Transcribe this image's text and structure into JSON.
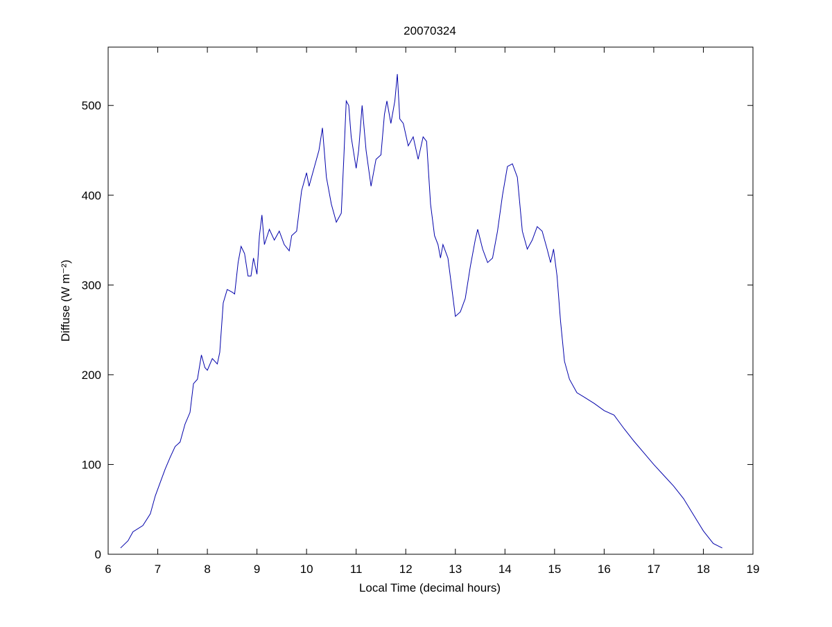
{
  "chart_data": {
    "type": "line",
    "title": "20070324",
    "xlabel": "Local Time (decimal hours)",
    "ylabel": "Diffuse (W m⁻²)",
    "x": [
      6.25,
      6.4,
      6.5,
      6.7,
      6.85,
      6.95,
      7.05,
      7.15,
      7.25,
      7.35,
      7.45,
      7.55,
      7.65,
      7.72,
      7.8,
      7.88,
      7.95,
      8.0,
      8.1,
      8.2,
      8.25,
      8.32,
      8.4,
      8.5,
      8.55,
      8.62,
      8.68,
      8.75,
      8.82,
      8.88,
      8.93,
      9.0,
      9.05,
      9.1,
      9.15,
      9.25,
      9.35,
      9.45,
      9.55,
      9.65,
      9.7,
      9.8,
      9.9,
      10.0,
      10.05,
      10.15,
      10.25,
      10.32,
      10.4,
      10.5,
      10.6,
      10.7,
      10.75,
      10.8,
      10.85,
      10.9,
      11.0,
      11.05,
      11.12,
      11.2,
      11.3,
      11.4,
      11.5,
      11.57,
      11.62,
      11.7,
      11.78,
      11.83,
      11.88,
      11.95,
      12.05,
      12.15,
      12.25,
      12.35,
      12.42,
      12.5,
      12.58,
      12.65,
      12.7,
      12.75,
      12.85,
      12.92,
      13.0,
      13.1,
      13.2,
      13.3,
      13.4,
      13.45,
      13.55,
      13.65,
      13.75,
      13.85,
      13.95,
      14.05,
      14.15,
      14.25,
      14.35,
      14.45,
      14.55,
      14.65,
      14.75,
      14.85,
      14.92,
      14.98,
      15.05,
      15.12,
      15.2,
      15.3,
      15.45,
      15.6,
      15.8,
      16.0,
      16.2,
      16.4,
      16.6,
      16.8,
      17.0,
      17.2,
      17.4,
      17.6,
      17.8,
      18.0,
      18.2,
      18.38
    ],
    "series": [
      {
        "name": "Diffuse",
        "color": "#0000aa",
        "values": [
          7,
          15,
          25,
          32,
          45,
          65,
          80,
          95,
          108,
          120,
          125,
          145,
          158,
          190,
          195,
          222,
          208,
          205,
          218,
          212,
          225,
          280,
          295,
          292,
          290,
          325,
          343,
          335,
          310,
          310,
          330,
          312,
          355,
          378,
          345,
          362,
          350,
          360,
          345,
          338,
          355,
          360,
          405,
          425,
          410,
          430,
          450,
          475,
          420,
          390,
          370,
          380,
          440,
          505,
          500,
          465,
          430,
          450,
          500,
          450,
          410,
          440,
          445,
          490,
          505,
          480,
          505,
          535,
          485,
          480,
          455,
          465,
          440,
          465,
          460,
          390,
          355,
          345,
          330,
          345,
          330,
          300,
          265,
          270,
          285,
          320,
          350,
          362,
          340,
          325,
          330,
          360,
          400,
          432,
          435,
          420,
          360,
          340,
          350,
          365,
          360,
          340,
          325,
          340,
          310,
          260,
          215,
          195,
          180,
          175,
          168,
          160,
          155,
          140,
          126,
          113,
          100,
          88,
          76,
          62,
          44,
          26,
          12,
          7
        ]
      }
    ],
    "xlim": [
      6,
      19
    ],
    "ylim": [
      0,
      565
    ],
    "xticks": [
      6,
      7,
      8,
      9,
      10,
      11,
      12,
      13,
      14,
      15,
      16,
      17,
      18,
      19
    ],
    "yticks": [
      0,
      100,
      200,
      300,
      400,
      500
    ]
  }
}
